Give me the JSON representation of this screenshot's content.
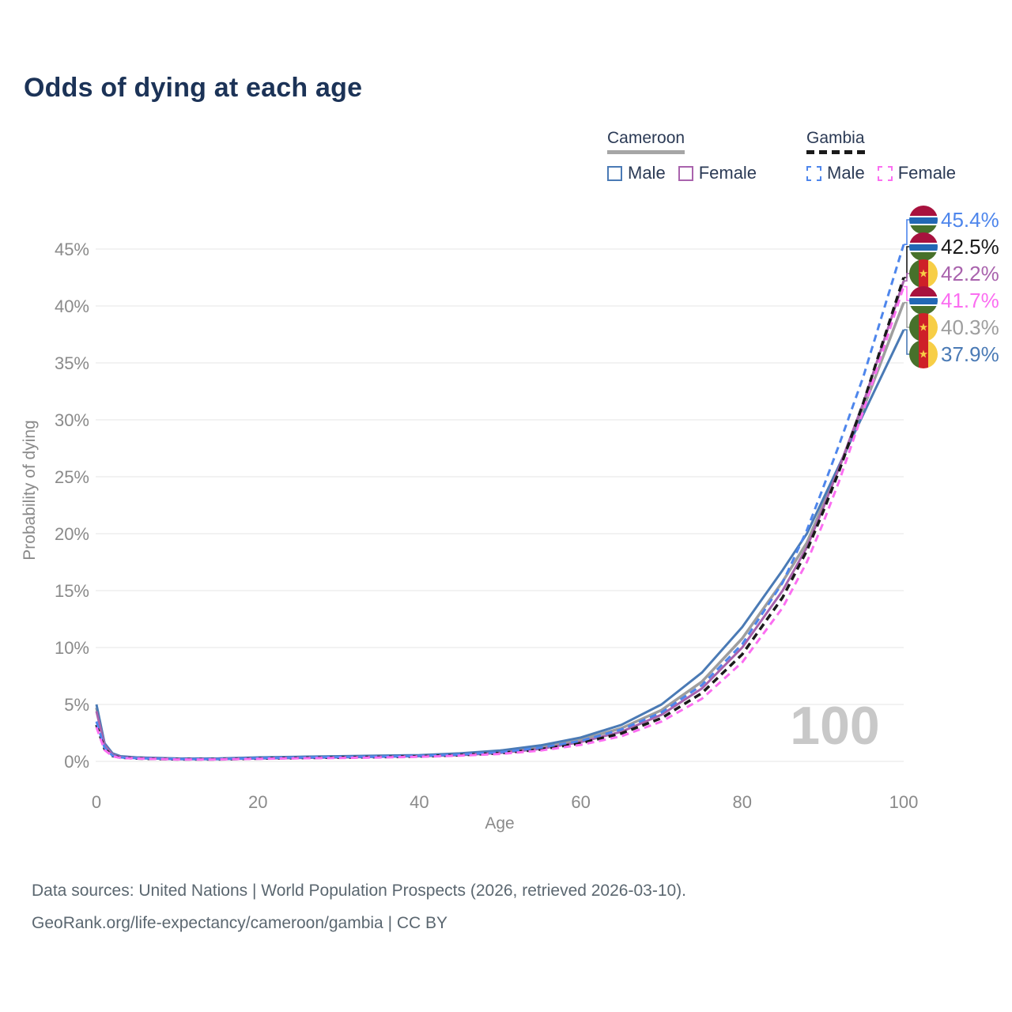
{
  "title": "Odds of dying at each age",
  "legend": {
    "groups": [
      {
        "label": "Cameroon",
        "line_style": "solid",
        "line_color": "#a6a6a6",
        "items": [
          {
            "label": "Male",
            "color": "#4a7ab5",
            "dashed": false
          },
          {
            "label": "Female",
            "color": "#a963ad",
            "dashed": false
          }
        ]
      },
      {
        "label": "Gambia",
        "line_style": "dashed",
        "line_color": "#1a1a1a",
        "items": [
          {
            "label": "Male",
            "color": "#4e86ec",
            "dashed": true
          },
          {
            "label": "Female",
            "color": "#fb6ef1",
            "dashed": true
          }
        ]
      }
    ]
  },
  "chart_data": {
    "type": "line",
    "title": "Odds of dying at each age",
    "xlabel": "Age",
    "ylabel": "Probability of dying",
    "xlim": [
      0,
      100
    ],
    "ylim": [
      0,
      45
    ],
    "x_ticks": [
      0,
      20,
      40,
      60,
      80,
      100
    ],
    "y_ticks": [
      0,
      5,
      10,
      15,
      20,
      25,
      30,
      35,
      40,
      45
    ],
    "y_tick_suffix": "%",
    "grid": true,
    "x": [
      0,
      1,
      2,
      3,
      5,
      10,
      15,
      20,
      25,
      30,
      35,
      40,
      45,
      50,
      55,
      60,
      65,
      70,
      75,
      80,
      85,
      88,
      90,
      92,
      95,
      100
    ],
    "series": [
      {
        "name": "Cameroon",
        "sex": "both",
        "color": "#9e9e9e",
        "dashed": false,
        "width": 3.5,
        "values": [
          4.7,
          1.5,
          0.65,
          0.4,
          0.32,
          0.22,
          0.22,
          0.3,
          0.35,
          0.4,
          0.45,
          0.5,
          0.62,
          0.85,
          1.25,
          1.9,
          2.9,
          4.5,
          7.0,
          10.8,
          15.8,
          19.2,
          22.5,
          25.8,
          31.0,
          40.3
        ]
      },
      {
        "name": "Cameroon Male",
        "sex": "male",
        "color": "#4a7ab5",
        "dashed": false,
        "width": 3,
        "values": [
          5.0,
          1.6,
          0.7,
          0.45,
          0.35,
          0.25,
          0.25,
          0.35,
          0.4,
          0.45,
          0.5,
          0.55,
          0.7,
          0.95,
          1.4,
          2.1,
          3.2,
          5.0,
          7.8,
          11.8,
          16.8,
          20.0,
          23.0,
          26.0,
          30.5,
          37.9
        ]
      },
      {
        "name": "Cameroon Female",
        "sex": "female",
        "color": "#a963ad",
        "dashed": false,
        "width": 3,
        "values": [
          4.4,
          1.4,
          0.6,
          0.38,
          0.3,
          0.2,
          0.2,
          0.25,
          0.3,
          0.35,
          0.4,
          0.45,
          0.55,
          0.75,
          1.1,
          1.7,
          2.6,
          4.1,
          6.4,
          10.0,
          15.0,
          18.8,
          22.2,
          25.8,
          31.5,
          42.2
        ]
      },
      {
        "name": "Gambia",
        "sex": "both",
        "color": "#1a1a1a",
        "dashed": true,
        "width": 3.5,
        "values": [
          3.2,
          1.1,
          0.48,
          0.33,
          0.26,
          0.18,
          0.18,
          0.25,
          0.3,
          0.34,
          0.38,
          0.44,
          0.55,
          0.72,
          1.05,
          1.6,
          2.45,
          3.8,
          6.0,
          9.4,
          14.4,
          18.5,
          21.9,
          25.5,
          31.5,
          42.5
        ]
      },
      {
        "name": "Gambia Male",
        "sex": "male",
        "color": "#4e86ec",
        "dashed": true,
        "width": 3,
        "values": [
          3.5,
          1.2,
          0.5,
          0.35,
          0.28,
          0.2,
          0.2,
          0.28,
          0.33,
          0.38,
          0.42,
          0.48,
          0.6,
          0.8,
          1.2,
          1.8,
          2.8,
          4.3,
          6.7,
          10.3,
          15.7,
          20.3,
          24.0,
          27.8,
          33.8,
          45.4
        ]
      },
      {
        "name": "Gambia Female",
        "sex": "female",
        "color": "#fb6ef1",
        "dashed": true,
        "width": 3,
        "values": [
          3.0,
          1.0,
          0.45,
          0.3,
          0.24,
          0.17,
          0.17,
          0.22,
          0.27,
          0.3,
          0.34,
          0.4,
          0.5,
          0.65,
          0.95,
          1.45,
          2.2,
          3.5,
          5.5,
          8.7,
          13.5,
          17.5,
          20.9,
          24.6,
          30.8,
          41.7
        ]
      }
    ],
    "end_labels": [
      {
        "text": "45.4%",
        "value": 45.4,
        "color": "#4e86ec",
        "flag": "gambia",
        "series": "Gambia Male"
      },
      {
        "text": "42.5%",
        "value": 42.5,
        "color": "#1a1a1a",
        "flag": "gambia",
        "series": "Gambia"
      },
      {
        "text": "42.2%",
        "value": 42.2,
        "color": "#a963ad",
        "flag": "cameroon",
        "series": "Cameroon Female"
      },
      {
        "text": "41.7%",
        "value": 41.7,
        "color": "#fb6ef1",
        "flag": "gambia",
        "series": "Gambia Female"
      },
      {
        "text": "40.3%",
        "value": 40.3,
        "color": "#9e9e9e",
        "flag": "cameroon",
        "series": "Cameroon"
      },
      {
        "text": "37.9%",
        "value": 37.9,
        "color": "#4a7ab5",
        "flag": "cameroon",
        "series": "Cameroon Male"
      }
    ],
    "legend_position": "top-right"
  },
  "flag_colors": {
    "gambia": {
      "red": "#A8123E",
      "blue": "#2268B5",
      "green": "#47712B",
      "white": "#ffffff"
    },
    "cameroon": {
      "green": "#47712B",
      "red": "#CE2028",
      "yellow": "#F7CE46"
    }
  },
  "watermark": "100",
  "axis_color": "#8a8a8a",
  "grid_color": "#ebebeb",
  "watermark_color": "#c8c8c8",
  "footer": {
    "line1": "Data sources: United Nations | World Population Prospects (2026, retrieved 2026-03-10).",
    "line2": "GeoRank.org/life-expectancy/cameroon/gambia | CC BY"
  }
}
